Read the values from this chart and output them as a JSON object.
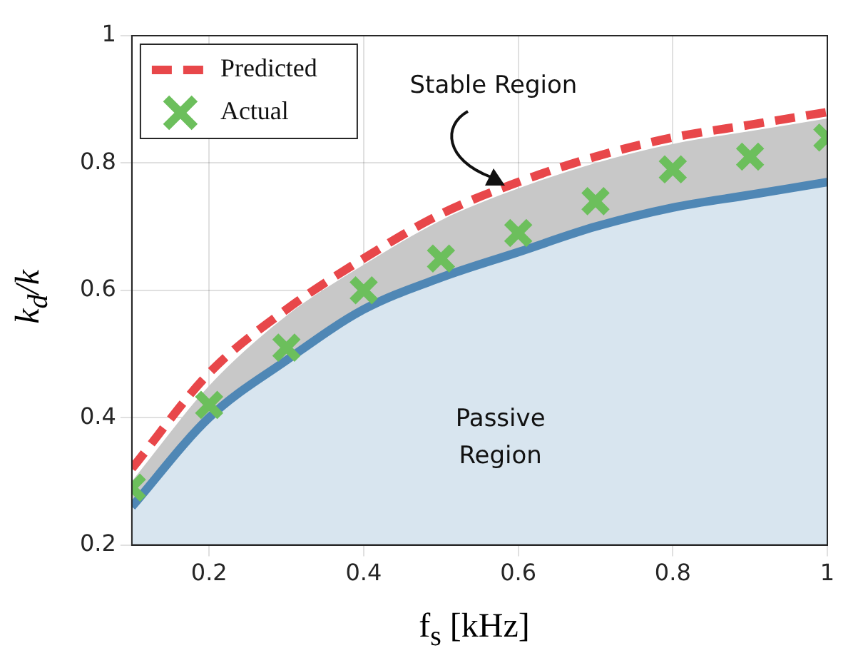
{
  "chart_data": {
    "type": "line",
    "xlabel": "f$_{s}$ [kHz]",
    "ylabel": "k$_{d}$/k",
    "x": [
      0.1,
      0.2,
      0.3,
      0.4,
      0.5,
      0.6,
      0.7,
      0.8,
      0.9,
      1.0
    ],
    "series": [
      {
        "type": "area",
        "color": "#c8c8c8",
        "values": [
          0.3,
          0.45,
          0.56,
          0.64,
          0.71,
          0.76,
          0.8,
          0.83,
          0.85,
          0.87
        ]
      },
      {
        "name": "Predicted",
        "color": "#e8474a",
        "line_style": "dashed",
        "values": [
          0.32,
          0.47,
          0.57,
          0.65,
          0.72,
          0.77,
          0.81,
          0.84,
          0.86,
          0.88
        ]
      },
      {
        "name": "Actual",
        "type": "scatter",
        "color": "#6cbf5c",
        "marker": "cross",
        "values": [
          0.29,
          0.42,
          0.51,
          0.6,
          0.65,
          0.69,
          0.74,
          0.79,
          0.81,
          0.84
        ]
      },
      {
        "type": "area",
        "color": "#4f87b5",
        "values": [
          0.26,
          0.4,
          0.49,
          0.57,
          0.62,
          0.66,
          0.7,
          0.73,
          0.75,
          0.77
        ]
      }
    ],
    "xlim": [
      0.1,
      1
    ],
    "xticks": [
      0.2,
      0.4,
      0.6,
      0.8,
      1
    ],
    "ylim": [
      0.2,
      1
    ],
    "yticks": [
      0.2,
      0.4,
      0.6,
      0.8,
      1
    ],
    "grid": true,
    "legend": "top left",
    "annotations": [
      "Stable Region",
      "Passive Region"
    ]
  }
}
